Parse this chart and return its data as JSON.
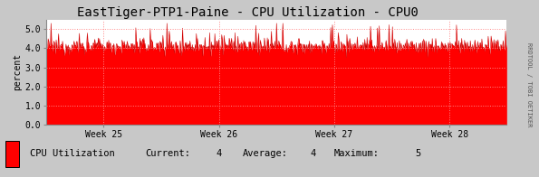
{
  "title": "EastTiger-PTP1-Paine - CPU Utilization - CPU0",
  "ylabel": "percent",
  "ylim": [
    0.0,
    5.5
  ],
  "yticks": [
    0.0,
    1.0,
    2.0,
    3.0,
    4.0,
    5.0
  ],
  "ytick_labels": [
    "0.0",
    "1.0",
    "2.0",
    "3.0",
    "4.0",
    "5.0"
  ],
  "x_week_labels": [
    "Week 25",
    "Week 26",
    "Week 27",
    "Week 28"
  ],
  "fill_color": "#ff0000",
  "line_color": "#cc0000",
  "bg_color": "#c8c8c8",
  "plot_bg_color": "#ffffff",
  "grid_color": "#ff8888",
  "watermark": "RRDTOOL / TOBI OETIKER",
  "legend_label": "CPU Utilization",
  "current": "4",
  "average": "4",
  "maximum": "5",
  "num_points": 800,
  "base_value": 4.1,
  "noise_std": 0.2,
  "spike_probability": 0.04,
  "spike_max": 5.3,
  "title_fontsize": 10,
  "axis_fontsize": 7,
  "legend_fontsize": 7.5
}
